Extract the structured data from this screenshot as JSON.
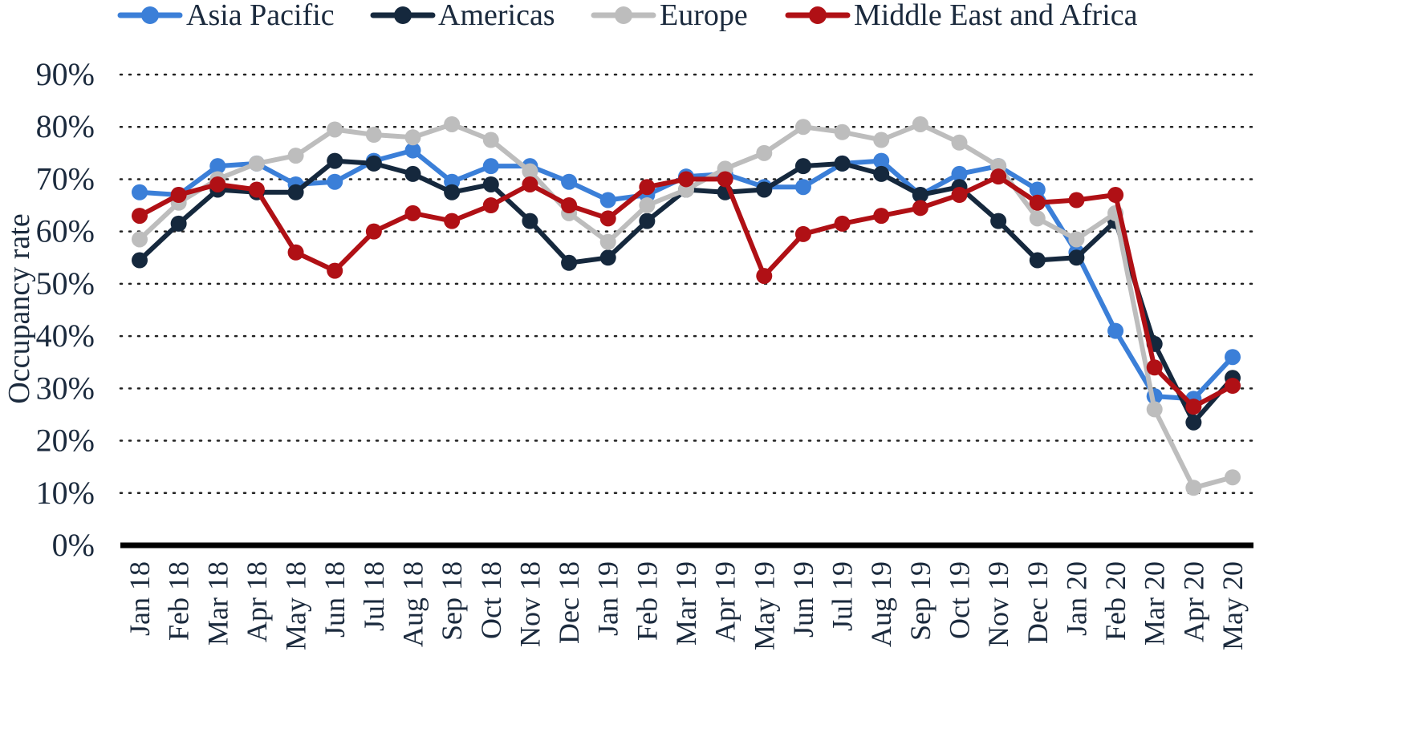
{
  "chart_data": {
    "type": "line",
    "title": "",
    "xlabel": "",
    "ylabel": "Occupancy rate",
    "ylim": [
      0,
      90
    ],
    "yticks": [
      0,
      10,
      20,
      30,
      40,
      50,
      60,
      70,
      80,
      90
    ],
    "ytick_labels": [
      "0%",
      "10%",
      "20%",
      "30%",
      "40%",
      "50%",
      "60%",
      "70%",
      "80%",
      "90%"
    ],
    "grid": "horizontal dotted",
    "legend_position": "top",
    "categories": [
      "Jan 18",
      "Feb 18",
      "Mar 18",
      "Apr 18",
      "May 18",
      "Jun 18",
      "Jul 18",
      "Aug 18",
      "Sep 18",
      "Oct 18",
      "Nov 18",
      "Dec 18",
      "Jan 19",
      "Feb 19",
      "Mar 19",
      "Apr 19",
      "May 19",
      "Jun 19",
      "Jul 19",
      "Aug 19",
      "Sep 19",
      "Oct 19",
      "Nov 19",
      "Dec 19",
      "Jan 20",
      "Feb 20",
      "Mar 20",
      "Apr 20",
      "May 20"
    ],
    "series": [
      {
        "name": "Asia Pacific",
        "color": "#3b7fd8",
        "values": [
          67.5,
          67,
          72.5,
          73,
          69,
          69.5,
          73.5,
          75.5,
          69.5,
          72.5,
          72.5,
          69.5,
          66,
          67,
          70.5,
          71,
          68.5,
          68.5,
          73,
          73.5,
          67,
          71,
          72.5,
          68,
          56,
          41,
          28.5,
          28,
          36
        ]
      },
      {
        "name": "Americas",
        "color": "#15283d",
        "values": [
          54.5,
          61.5,
          68,
          67.5,
          67.5,
          73.5,
          73,
          71,
          67.5,
          69,
          62,
          54,
          55,
          62,
          68,
          67.5,
          68,
          72.5,
          73,
          71,
          67,
          68.5,
          62,
          54.5,
          55,
          62,
          38.5,
          23.5,
          32
        ]
      },
      {
        "name": "Europe",
        "color": "#bdbdbd",
        "values": [
          58.5,
          65.5,
          70,
          73,
          74.5,
          79.5,
          78.5,
          78,
          80.5,
          77.5,
          71.5,
          63.5,
          58,
          65,
          68,
          72,
          75,
          80,
          79,
          77.5,
          80.5,
          77,
          72.5,
          62.5,
          58.5,
          63.5,
          26,
          11,
          13
        ]
      },
      {
        "name": "Middle East and Africa",
        "color": "#b01015",
        "values": [
          63,
          67,
          69,
          68,
          56,
          52.5,
          60,
          63.5,
          62,
          65,
          69,
          65,
          62.5,
          68.5,
          70,
          70,
          51.5,
          59.5,
          61.5,
          63,
          64.5,
          67,
          70.5,
          65.5,
          66,
          67,
          34,
          26.5,
          30.5
        ]
      }
    ]
  }
}
